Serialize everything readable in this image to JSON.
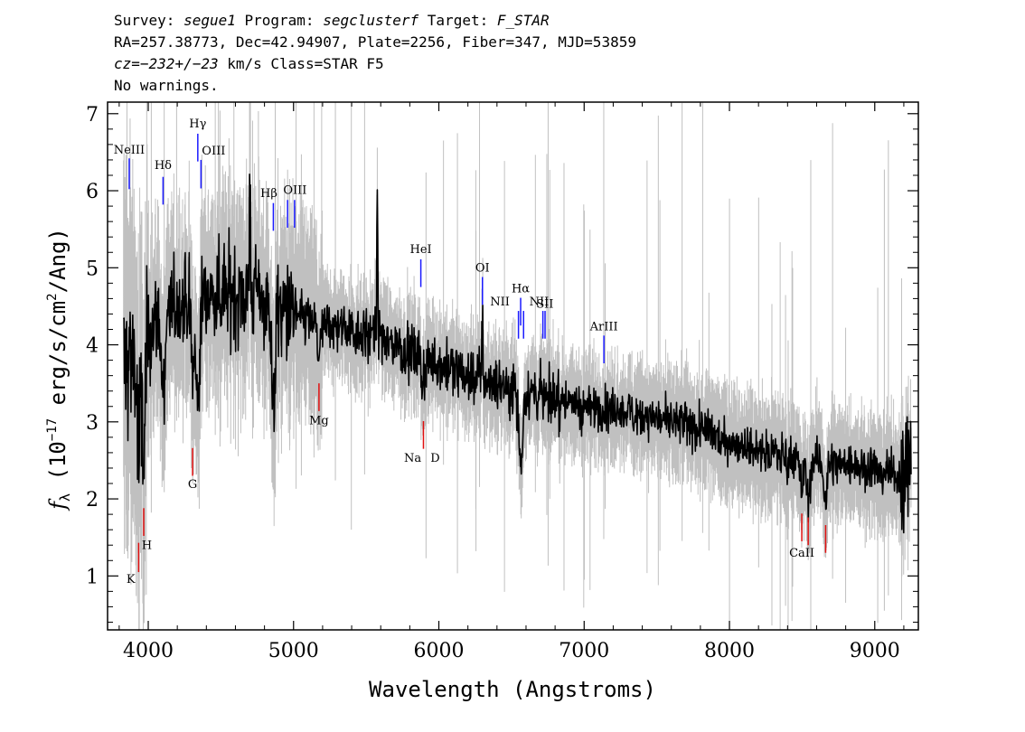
{
  "header": {
    "line1": {
      "survey_label": "Survey: ",
      "survey": "segue1",
      "program_label": " Program: ",
      "program": "segclusterf",
      "target_label": " Target: ",
      "target": "F_STAR"
    },
    "line2": "RA=257.38773, Dec=42.94907, Plate=2256, Fiber=347, MJD=53859",
    "line3": {
      "cz_prefix": "cz=",
      "cz_value": "−232+/−23",
      "cz_suffix": " km/s Class=STAR F5"
    },
    "line4": "No warnings."
  },
  "chart_data": {
    "type": "line",
    "xlabel": "Wavelength (Angstroms)",
    "ylabel": {
      "symbol": "f",
      "sub": "λ",
      "units_a": " (10",
      "exp": "−17",
      "units_b": " erg/s/cm",
      "sq": "2",
      "units_c": "/Ang)"
    },
    "xlim": [
      3720,
      9300
    ],
    "ylim": [
      0.3,
      7.15
    ],
    "xticks": [
      4000,
      5000,
      6000,
      7000,
      8000,
      9000
    ],
    "yticks": [
      1,
      2,
      3,
      4,
      5,
      6,
      7
    ],
    "data_range": [
      3830,
      9250
    ],
    "series": [
      {
        "role": "spectrum",
        "color": "#000000",
        "continuum": [
          [
            3830,
            3.7
          ],
          [
            3950,
            4.0
          ],
          [
            4050,
            4.3
          ],
          [
            4200,
            4.5
          ],
          [
            4400,
            4.65
          ],
          [
            4600,
            4.7
          ],
          [
            4800,
            4.6
          ],
          [
            5000,
            4.4
          ],
          [
            5200,
            4.25
          ],
          [
            5400,
            4.2
          ],
          [
            5600,
            4.1
          ],
          [
            5800,
            3.9
          ],
          [
            6000,
            3.75
          ],
          [
            6200,
            3.6
          ],
          [
            6400,
            3.5
          ],
          [
            6600,
            3.4
          ],
          [
            6800,
            3.3
          ],
          [
            7000,
            3.2
          ],
          [
            7200,
            3.15
          ],
          [
            7400,
            3.1
          ],
          [
            7600,
            3.0
          ],
          [
            7800,
            2.9
          ],
          [
            8000,
            2.75
          ],
          [
            8200,
            2.65
          ],
          [
            8400,
            2.55
          ],
          [
            8600,
            2.5
          ],
          [
            8800,
            2.45
          ],
          [
            9000,
            2.4
          ],
          [
            9200,
            2.3
          ]
        ]
      },
      {
        "role": "error",
        "color": "#c0c0c0"
      }
    ],
    "absorption_features": [
      {
        "x": 3934,
        "depth": 1.3
      },
      {
        "x": 3969,
        "depth": 1.5
      },
      {
        "x": 4102,
        "depth": 1.0
      },
      {
        "x": 4305,
        "depth": 0.9
      },
      {
        "x": 4341,
        "depth": 1.4
      },
      {
        "x": 4861,
        "depth": 1.4
      },
      {
        "x": 5175,
        "depth": 0.4
      },
      {
        "x": 5893,
        "depth": 0.5
      },
      {
        "x": 6563,
        "depth": 1.0
      },
      {
        "x": 8498,
        "depth": 0.4
      },
      {
        "x": 8542,
        "depth": 0.5
      },
      {
        "x": 8662,
        "depth": 0.5
      }
    ],
    "spikes": [
      {
        "x": 4700,
        "height": 1.4
      },
      {
        "x": 5577,
        "height": 1.5
      },
      {
        "x": 5894,
        "height": 0.6
      },
      {
        "x": 6300,
        "height": 0.8
      }
    ],
    "emission_lines": [
      {
        "label": "NeIII",
        "x": 3869,
        "y1": 6.02,
        "y2": 6.42,
        "lx": 3869,
        "ly": 6.48
      },
      {
        "label": "Hδ",
        "x": 4102,
        "y1": 5.82,
        "y2": 6.18,
        "lx": 4102,
        "ly": 6.28
      },
      {
        "label": "Hγ",
        "x": 4341,
        "y1": 6.38,
        "y2": 6.74,
        "lx": 4341,
        "ly": 6.82
      },
      {
        "label": "OIII",
        "x": 4363,
        "y1": 6.03,
        "y2": 6.4,
        "lx": 4450,
        "ly": 6.47
      },
      {
        "label": "Hβ",
        "x": 4861,
        "y1": 5.48,
        "y2": 5.84,
        "lx": 4830,
        "ly": 5.92
      },
      {
        "label": "OIII",
        "x": 4959,
        "y1": 5.52,
        "y2": 5.88,
        "lx": 5010,
        "ly": 5.96
      },
      {
        "label": "OIII",
        "x": 5007,
        "y1": 5.52,
        "y2": 5.88,
        "lx": "",
        "ly": ""
      },
      {
        "label": "HeI",
        "x": 5876,
        "y1": 4.75,
        "y2": 5.11,
        "lx": 5876,
        "ly": 5.19
      },
      {
        "label": "OI",
        "x": 6300,
        "y1": 4.52,
        "y2": 4.88,
        "lx": 6300,
        "ly": 4.95
      },
      {
        "label": "NII",
        "x": 6548,
        "y1": 4.08,
        "y2": 4.44,
        "lx": 6420,
        "ly": 4.51
      },
      {
        "label": "Hα",
        "x": 6563,
        "y1": 4.25,
        "y2": 4.61,
        "lx": 6563,
        "ly": 4.68
      },
      {
        "label": "NII",
        "x": 6583,
        "y1": 4.08,
        "y2": 4.44,
        "lx": 6690,
        "ly": 4.51
      },
      {
        "label": "SII",
        "x": 6716,
        "y1": 4.08,
        "y2": 4.44,
        "lx": 6730,
        "ly": 4.48
      },
      {
        "label": "SII",
        "x": 6731,
        "y1": 4.08,
        "y2": 4.44,
        "lx": "",
        "ly": ""
      },
      {
        "label": "ArIII",
        "x": 7136,
        "y1": 3.76,
        "y2": 4.12,
        "lx": 7136,
        "ly": 4.19
      }
    ],
    "absorption_lines": [
      {
        "label": "K",
        "x": 3934,
        "y1": 1.05,
        "y2": 1.43,
        "lx": 3880,
        "ly": 0.91
      },
      {
        "label": "H",
        "x": 3969,
        "y1": 1.52,
        "y2": 1.88,
        "lx": 3990,
        "ly": 1.35
      },
      {
        "label": "G",
        "x": 4305,
        "y1": 2.3,
        "y2": 2.66,
        "lx": 4305,
        "ly": 2.14
      },
      {
        "label": "Mg",
        "x": 5175,
        "y1": 3.14,
        "y2": 3.5,
        "lx": 5175,
        "ly": 2.97
      },
      {
        "label": "Na",
        "x": 5894,
        "y1": 2.65,
        "y2": 3.01,
        "lx": 5820,
        "ly": 2.48
      },
      {
        "label": "D",
        "x": 5894,
        "y1": "",
        "y2": "",
        "lx": 5975,
        "ly": 2.48
      },
      {
        "label": "CaII",
        "x": 8498,
        "y1": 1.45,
        "y2": 1.81,
        "lx": 8498,
        "ly": 1.25
      },
      {
        "label": "",
        "x": 8542,
        "y1": 1.4,
        "y2": 1.76,
        "lx": "",
        "ly": ""
      },
      {
        "label": "",
        "x": 8662,
        "y1": 1.3,
        "y2": 1.66,
        "lx": "",
        "ly": ""
      }
    ],
    "colors": {
      "spectrum": "#000000",
      "error": "#c0c0c0",
      "emission": "#1a1aff",
      "absorption": "#e01010",
      "axes": "#000000"
    }
  }
}
